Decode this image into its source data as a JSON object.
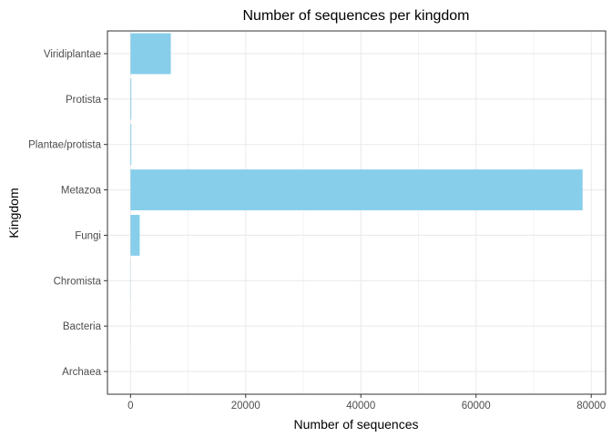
{
  "chart_data": {
    "type": "bar",
    "orientation": "horizontal",
    "title": "Number of sequences per kingdom",
    "xlabel": "Number of sequences",
    "ylabel": "Kingdom",
    "categories": [
      "Archaea",
      "Bacteria",
      "Chromista",
      "Fungi",
      "Metazoa",
      "Plantae/protista",
      "Protista",
      "Viridiplantae"
    ],
    "values": [
      5,
      10,
      30,
      1600,
      78500,
      150,
      150,
      7000
    ],
    "xlim": [
      -4000,
      82500
    ],
    "xticks": [
      0,
      20000,
      40000,
      60000,
      80000
    ],
    "xtick_labels": [
      "0",
      "20000",
      "40000",
      "60000",
      "80000"
    ],
    "grid": true,
    "legend": "none",
    "colors": {
      "bar": "#87CEEB",
      "grid": "#ebebeb",
      "panel_border": "#333333",
      "tick_text": "#4d4d4d",
      "text": "#000000"
    }
  }
}
